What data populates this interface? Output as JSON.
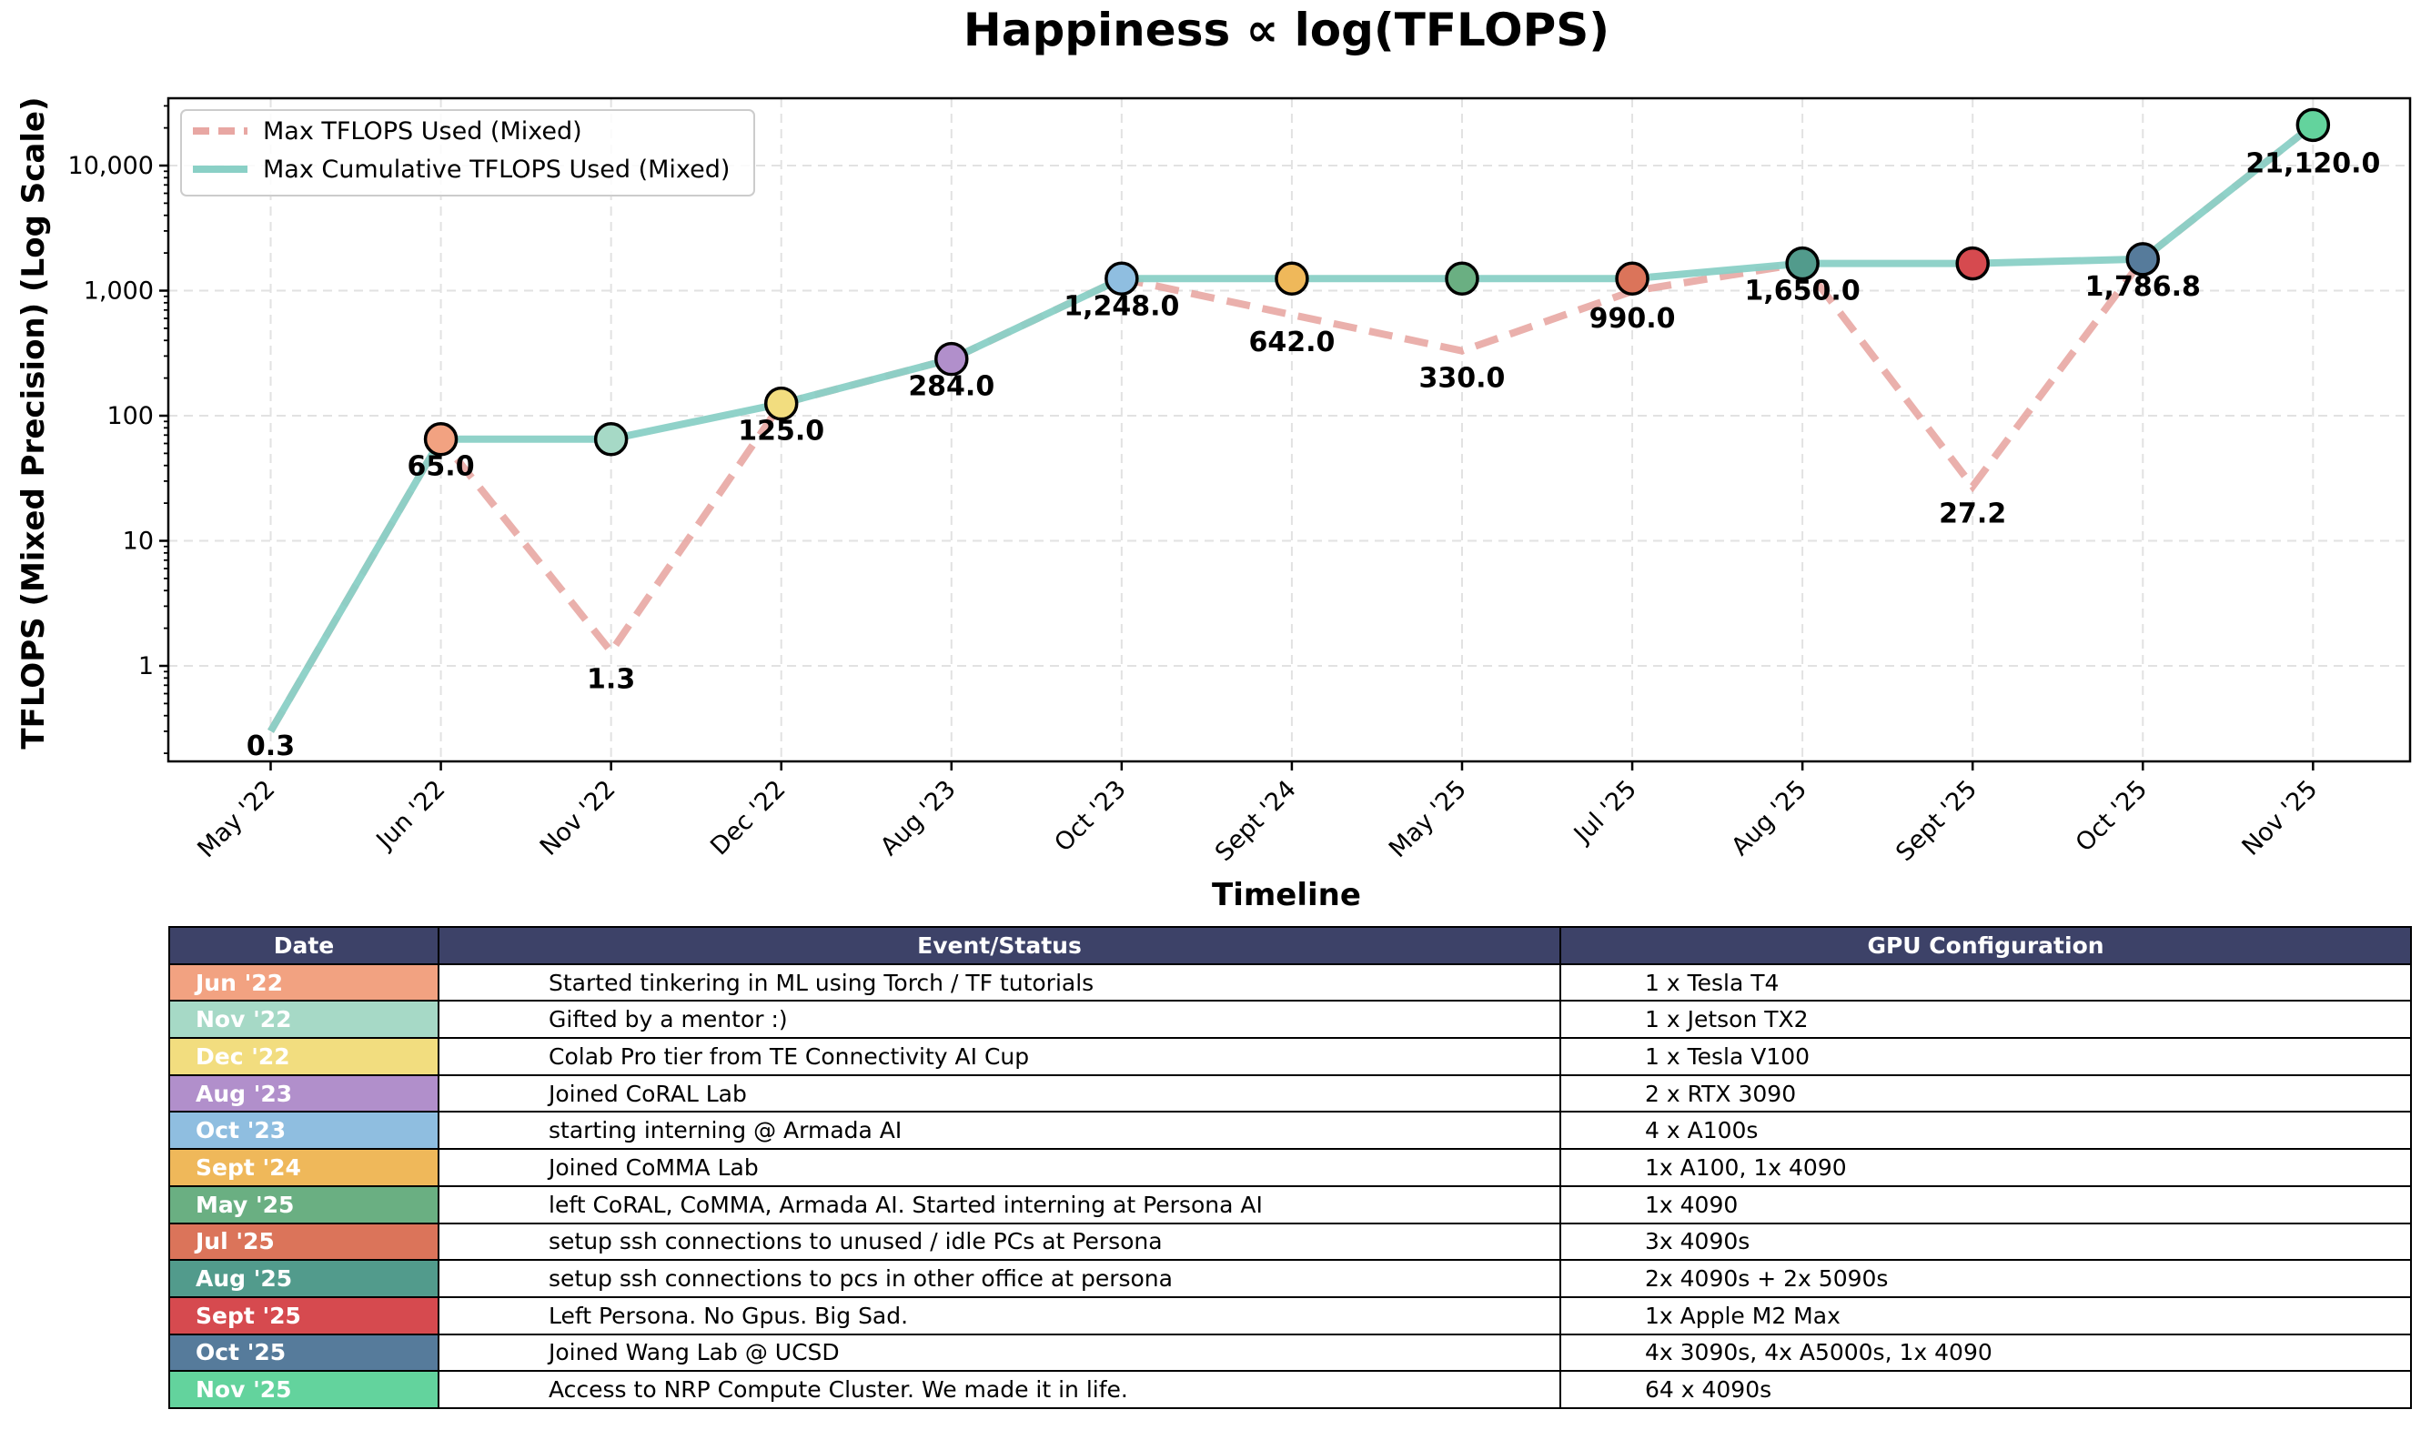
{
  "chart_data": {
    "type": "line",
    "title": "Happiness ∝ log(TFLOPS)",
    "xlabel": "Timeline",
    "ylabel": "TFLOPS (Mixed Precision) (Log Scale)",
    "yscale": "log",
    "ylim": [
      0.19,
      36000
    ],
    "grid": true,
    "legend_position": "top-left",
    "categories": [
      "May '22",
      "Jun '22",
      "Nov '22",
      "Dec '22",
      "Aug '23",
      "Oct '23",
      "Sept '24",
      "May '25",
      "Jul '25",
      "Aug '25",
      "Sept '25",
      "Oct '25",
      "Nov '25"
    ],
    "yticks": [
      1,
      10,
      100,
      1000,
      10000
    ],
    "ytick_labels": [
      "1",
      "10",
      "100",
      "1,000",
      "10,000"
    ],
    "series": [
      {
        "name": "Max TFLOPS Used (Mixed)",
        "style": "dashed",
        "color": "#e8a7a3",
        "values": [
          0.3,
          65.0,
          1.3,
          125.0,
          284.0,
          1248.0,
          642.0,
          330.0,
          990.0,
          1650.0,
          27.2,
          1786.8,
          21120.0
        ]
      },
      {
        "name": "Max Cumulative TFLOPS Used (Mixed)",
        "style": "solid",
        "color": "#8ad0c6",
        "values": [
          0.3,
          65.0,
          65.0,
          125.0,
          284.0,
          1248.0,
          1248.0,
          1248.0,
          1248.0,
          1650.0,
          1650.0,
          1786.8,
          21120.0
        ]
      }
    ],
    "value_labels": [
      "0.3",
      "65.0",
      "1.3",
      "125.0",
      "284.0",
      "1,248.0",
      "642.0",
      "330.0",
      "990.0",
      "1,650.0",
      "27.2",
      "1,786.8",
      "21,120.0"
    ],
    "marker_colors": [
      "#f2a281",
      "#a6d9c6",
      "#f2dd7f",
      "#b18fcb",
      "#8fbee0",
      "#efb85a",
      "#6aaf82",
      "#db745a",
      "#529b8c",
      "#d64a4f",
      "#567b9b",
      "#63d39d"
    ]
  },
  "table": {
    "headers": [
      "Date",
      "Event/Status",
      "GPU Configuration"
    ],
    "rows": [
      {
        "date": "Jun '22",
        "color": "#f2a281",
        "event": "Started tinkering in ML using Torch / TF tutorials",
        "gpu": "1 x Tesla T4"
      },
      {
        "date": "Nov '22",
        "color": "#a6d9c6",
        "event": "Gifted by a mentor :)",
        "gpu": "1 x Jetson TX2"
      },
      {
        "date": "Dec '22",
        "color": "#f2dd7f",
        "event": "Colab Pro tier from TE Connectivity AI Cup",
        "gpu": "1 x Tesla V100"
      },
      {
        "date": "Aug '23",
        "color": "#b18fcb",
        "event": "Joined CoRAL Lab",
        "gpu": "2 x RTX 3090"
      },
      {
        "date": "Oct '23",
        "color": "#8fbee0",
        "event": "starting interning @ Armada AI",
        "gpu": "4 x A100s"
      },
      {
        "date": "Sept '24",
        "color": "#efb85a",
        "event": "Joined CoMMA Lab",
        "gpu": "1x A100, 1x 4090"
      },
      {
        "date": "May '25",
        "color": "#6aaf82",
        "event": "left CoRAL, CoMMA, Armada AI. Started interning at Persona AI",
        "gpu": "1x 4090"
      },
      {
        "date": "Jul '25",
        "color": "#db745a",
        "event": "setup ssh connections to unused / idle PCs at Persona",
        "gpu": "3x 4090s"
      },
      {
        "date": "Aug '25",
        "color": "#529b8c",
        "event": "setup ssh connections to pcs in other office at persona",
        "gpu": "2x 4090s + 2x 5090s"
      },
      {
        "date": "Sept '25",
        "color": "#d64a4f",
        "event": "Left Persona. No Gpus. Big Sad.",
        "gpu": "1x Apple M2 Max"
      },
      {
        "date": "Oct '25",
        "color": "#567b9b",
        "event": "Joined Wang Lab @ UCSD",
        "gpu": "4x 3090s, 4x A5000s, 1x 4090"
      },
      {
        "date": "Nov '25",
        "color": "#63d39d",
        "event": "Access to NRP Compute Cluster. We made it in life.",
        "gpu": "64 x 4090s"
      }
    ]
  }
}
